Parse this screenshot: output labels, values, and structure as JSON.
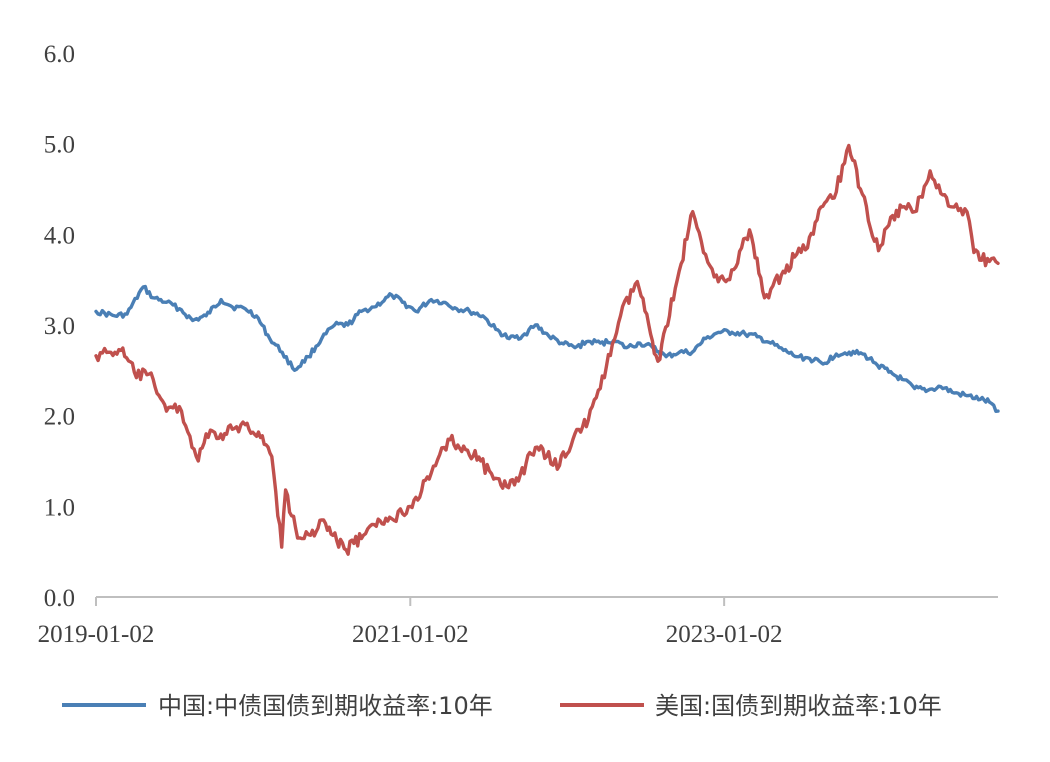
{
  "chart_data": {
    "type": "line",
    "x_start": "2019-01-02",
    "x_end": "2024-09-30",
    "ylim": [
      0.0,
      6.0
    ],
    "y_ticks": [
      "6.0",
      "5.0",
      "4.0",
      "3.0",
      "2.0",
      "1.0",
      "0.0"
    ],
    "x_ticks": [
      "2019-01-02",
      "2021-01-02",
      "2023-01-02"
    ],
    "grid": false,
    "legend_position": "bottom",
    "series": [
      {
        "name": "中国:中债国债到期收益率:10年",
        "color": "#4a7fb5",
        "points": [
          [
            "2019-01-02",
            3.15
          ],
          [
            "2019-02-15",
            3.1
          ],
          [
            "2019-03-15",
            3.12
          ],
          [
            "2019-04-22",
            3.42
          ],
          [
            "2019-05-15",
            3.3
          ],
          [
            "2019-06-15",
            3.25
          ],
          [
            "2019-07-15",
            3.18
          ],
          [
            "2019-08-15",
            3.05
          ],
          [
            "2019-09-15",
            3.1
          ],
          [
            "2019-10-20",
            3.28
          ],
          [
            "2019-11-15",
            3.2
          ],
          [
            "2019-12-15",
            3.18
          ],
          [
            "2020-01-10",
            3.1
          ],
          [
            "2020-02-10",
            2.85
          ],
          [
            "2020-03-10",
            2.7
          ],
          [
            "2020-04-08",
            2.5
          ],
          [
            "2020-05-10",
            2.65
          ],
          [
            "2020-06-10",
            2.85
          ],
          [
            "2020-07-10",
            3.0
          ],
          [
            "2020-08-10",
            3.0
          ],
          [
            "2020-09-10",
            3.15
          ],
          [
            "2020-10-10",
            3.2
          ],
          [
            "2020-11-20",
            3.33
          ],
          [
            "2020-12-15",
            3.25
          ],
          [
            "2021-01-15",
            3.15
          ],
          [
            "2021-02-20",
            3.28
          ],
          [
            "2021-03-20",
            3.25
          ],
          [
            "2021-04-20",
            3.18
          ],
          [
            "2021-05-20",
            3.15
          ],
          [
            "2021-06-20",
            3.1
          ],
          [
            "2021-07-20",
            2.95
          ],
          [
            "2021-08-20",
            2.85
          ],
          [
            "2021-09-20",
            2.88
          ],
          [
            "2021-10-20",
            3.0
          ],
          [
            "2021-11-20",
            2.88
          ],
          [
            "2021-12-20",
            2.8
          ],
          [
            "2022-01-20",
            2.75
          ],
          [
            "2022-02-20",
            2.82
          ],
          [
            "2022-03-20",
            2.8
          ],
          [
            "2022-04-20",
            2.83
          ],
          [
            "2022-05-20",
            2.75
          ],
          [
            "2022-06-20",
            2.8
          ],
          [
            "2022-07-20",
            2.75
          ],
          [
            "2022-08-20",
            2.65
          ],
          [
            "2022-09-20",
            2.7
          ],
          [
            "2022-10-20",
            2.7
          ],
          [
            "2022-11-20",
            2.85
          ],
          [
            "2022-12-20",
            2.92
          ],
          [
            "2023-01-20",
            2.92
          ],
          [
            "2023-02-20",
            2.9
          ],
          [
            "2023-03-20",
            2.87
          ],
          [
            "2023-04-20",
            2.8
          ],
          [
            "2023-05-20",
            2.72
          ],
          [
            "2023-06-20",
            2.65
          ],
          [
            "2023-07-20",
            2.63
          ],
          [
            "2023-08-20",
            2.57
          ],
          [
            "2023-09-20",
            2.68
          ],
          [
            "2023-10-20",
            2.7
          ],
          [
            "2023-11-20",
            2.68
          ],
          [
            "2023-12-20",
            2.58
          ],
          [
            "2024-01-20",
            2.48
          ],
          [
            "2024-02-20",
            2.4
          ],
          [
            "2024-03-20",
            2.3
          ],
          [
            "2024-04-20",
            2.28
          ],
          [
            "2024-05-20",
            2.32
          ],
          [
            "2024-06-20",
            2.25
          ],
          [
            "2024-07-20",
            2.22
          ],
          [
            "2024-08-20",
            2.18
          ],
          [
            "2024-09-10",
            2.15
          ],
          [
            "2024-09-30",
            2.05
          ]
        ]
      },
      {
        "name": "美国:国债到期收益率:10年",
        "color": "#c0504d",
        "points": [
          [
            "2019-01-02",
            2.66
          ],
          [
            "2019-02-01",
            2.7
          ],
          [
            "2019-03-01",
            2.72
          ],
          [
            "2019-04-01",
            2.48
          ],
          [
            "2019-05-15",
            2.4
          ],
          [
            "2019-06-15",
            2.05
          ],
          [
            "2019-07-15",
            2.1
          ],
          [
            "2019-08-28",
            1.5
          ],
          [
            "2019-09-15",
            1.8
          ],
          [
            "2019-10-15",
            1.75
          ],
          [
            "2019-11-15",
            1.85
          ],
          [
            "2019-12-15",
            1.9
          ],
          [
            "2020-01-15",
            1.82
          ],
          [
            "2020-02-15",
            1.55
          ],
          [
            "2020-03-09",
            0.55
          ],
          [
            "2020-03-18",
            1.18
          ],
          [
            "2020-04-15",
            0.65
          ],
          [
            "2020-05-15",
            0.68
          ],
          [
            "2020-06-10",
            0.85
          ],
          [
            "2020-07-15",
            0.62
          ],
          [
            "2020-08-06",
            0.52
          ],
          [
            "2020-09-15",
            0.68
          ],
          [
            "2020-10-15",
            0.78
          ],
          [
            "2020-11-15",
            0.88
          ],
          [
            "2020-12-15",
            0.92
          ],
          [
            "2021-01-15",
            1.1
          ],
          [
            "2021-02-15",
            1.3
          ],
          [
            "2021-03-31",
            1.74
          ],
          [
            "2021-05-15",
            1.62
          ],
          [
            "2021-06-15",
            1.5
          ],
          [
            "2021-07-15",
            1.3
          ],
          [
            "2021-08-05",
            1.2
          ],
          [
            "2021-09-15",
            1.35
          ],
          [
            "2021-10-20",
            1.65
          ],
          [
            "2021-11-15",
            1.55
          ],
          [
            "2021-12-15",
            1.45
          ],
          [
            "2022-01-20",
            1.8
          ],
          [
            "2022-02-20",
            1.95
          ],
          [
            "2022-03-20",
            2.3
          ],
          [
            "2022-05-06",
            3.1
          ],
          [
            "2022-06-14",
            3.48
          ],
          [
            "2022-07-15",
            2.9
          ],
          [
            "2022-08-01",
            2.6
          ],
          [
            "2022-09-15",
            3.5
          ],
          [
            "2022-10-21",
            4.25
          ],
          [
            "2022-11-15",
            3.8
          ],
          [
            "2022-12-15",
            3.55
          ],
          [
            "2023-01-15",
            3.5
          ],
          [
            "2023-03-02",
            4.05
          ],
          [
            "2023-04-06",
            3.3
          ],
          [
            "2023-05-15",
            3.55
          ],
          [
            "2023-06-15",
            3.75
          ],
          [
            "2023-07-15",
            3.85
          ],
          [
            "2023-08-15",
            4.3
          ],
          [
            "2023-09-15",
            4.4
          ],
          [
            "2023-10-19",
            4.98
          ],
          [
            "2023-11-15",
            4.5
          ],
          [
            "2023-12-27",
            3.82
          ],
          [
            "2024-01-20",
            4.1
          ],
          [
            "2024-02-20",
            4.3
          ],
          [
            "2024-03-20",
            4.25
          ],
          [
            "2024-04-25",
            4.7
          ],
          [
            "2024-05-20",
            4.45
          ],
          [
            "2024-06-20",
            4.3
          ],
          [
            "2024-07-20",
            4.25
          ],
          [
            "2024-08-05",
            3.8
          ],
          [
            "2024-09-10",
            3.7
          ],
          [
            "2024-09-30",
            3.68
          ]
        ]
      }
    ]
  }
}
